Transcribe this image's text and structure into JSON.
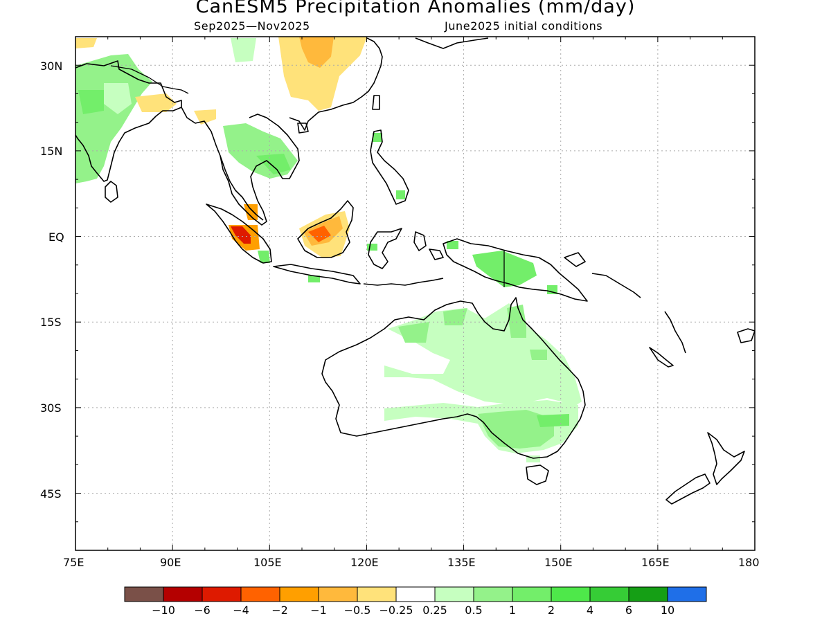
{
  "title": "CanESM5 Precipitation Anomalies (mm/day)",
  "subtitle_left": "Sep2025—Nov2025",
  "subtitle_right": "June2025 initial conditions",
  "map": {
    "lon_range": [
      75,
      180
    ],
    "lat_range": [
      -55,
      35
    ],
    "x_ticks": [
      "75E",
      "90E",
      "105E",
      "120E",
      "135E",
      "150E",
      "165E",
      "180"
    ],
    "y_ticks": [
      "30N",
      "15N",
      "EQ",
      "15S",
      "30S",
      "45S"
    ],
    "grid": "dotted"
  },
  "colorbar": {
    "colors": [
      "#7a5048",
      "#b40000",
      "#de1a00",
      "#ff6200",
      "#ff9f00",
      "#ffb93c",
      "#ffe27a",
      "#ffffff",
      "#c6ffc0",
      "#94f28a",
      "#73ee6a",
      "#4ee84a",
      "#36cc36",
      "#159f15",
      "#1f6fe8"
    ],
    "labels": [
      "−10",
      "−6",
      "−4",
      "−2",
      "−1",
      "−0.5",
      "−0.25",
      "0.25",
      "0.5",
      "1",
      "2",
      "4",
      "6",
      "10"
    ]
  }
}
